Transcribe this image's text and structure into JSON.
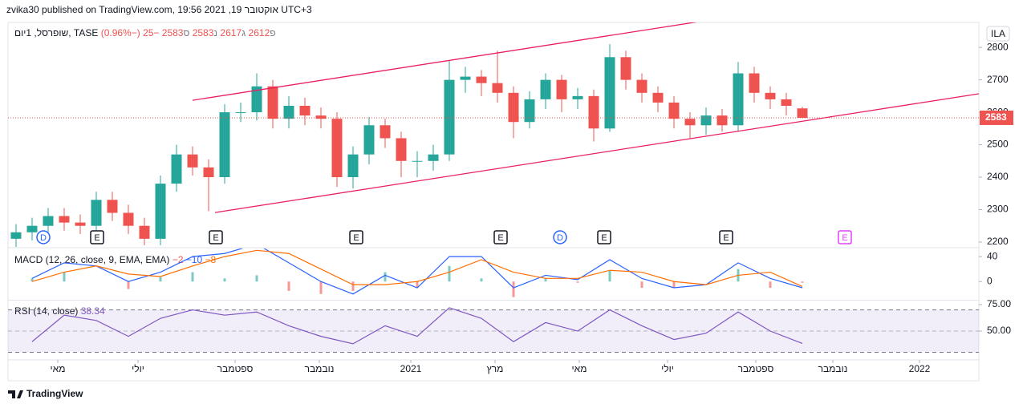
{
  "header": {
    "published": "zvika30 published on TradingView.com, אוקטובר 19, 2021 19:56 UTC+3",
    "symbol_badge": "ILA"
  },
  "footer": {
    "brand": "TradingView"
  },
  "chart_data": [
    {
      "type": "candlestick",
      "symbol": "שופרסל, 1יום, TASE",
      "ohlc_labels": [
        "פ",
        "ג",
        "נ",
        "ס"
      ],
      "change_label": "−25 (−0.96%)",
      "up_color": "#26a69a",
      "down_color": "#ef5350",
      "xlim": [
        0,
        121
      ],
      "ylim": [
        2185,
        2877
      ],
      "yticks": [
        2200,
        2300,
        2400,
        2500,
        2600,
        2700,
        2800
      ],
      "x": [
        1,
        3,
        5,
        7,
        9,
        11,
        13,
        15,
        17,
        19,
        21,
        23,
        25,
        27,
        29,
        31,
        33,
        35,
        37,
        39,
        41,
        43,
        45,
        47,
        49,
        51,
        53,
        55,
        57,
        59,
        61,
        63,
        65,
        67,
        69,
        71,
        73,
        75,
        77,
        79,
        81,
        83,
        85,
        87,
        89,
        91,
        93,
        95,
        97,
        99
      ],
      "open": [
        2210,
        2230,
        2250,
        2280,
        2260,
        2250,
        2330,
        2290,
        2250,
        2210,
        2380,
        2470,
        2430,
        2400,
        2600,
        2600,
        2680,
        2580,
        2620,
        2590,
        2580,
        2400,
        2470,
        2560,
        2520,
        2450,
        2450,
        2470,
        2700,
        2710,
        2690,
        2660,
        2570,
        2640,
        2700,
        2640,
        2650,
        2550,
        2770,
        2700,
        2660,
        2630,
        2580,
        2560,
        2590,
        2560,
        2720,
        2660,
        2640,
        2612
      ],
      "high": [
        2255,
        2275,
        2305,
        2305,
        2285,
        2355,
        2355,
        2315,
        2275,
        2405,
        2500,
        2495,
        2455,
        2625,
        2630,
        2720,
        2700,
        2650,
        2645,
        2615,
        2600,
        2495,
        2585,
        2580,
        2540,
        2480,
        2500,
        2760,
        2740,
        2730,
        2790,
        2680,
        2665,
        2720,
        2715,
        2675,
        2670,
        2810,
        2790,
        2720,
        2680,
        2650,
        2600,
        2615,
        2610,
        2755,
        2740,
        2680,
        2660,
        2617
      ],
      "low": [
        2185,
        2205,
        2225,
        2235,
        2225,
        2225,
        2265,
        2225,
        2190,
        2190,
        2355,
        2405,
        2295,
        2380,
        2570,
        2575,
        2550,
        2550,
        2560,
        2550,
        2370,
        2365,
        2440,
        2490,
        2400,
        2400,
        2420,
        2450,
        2660,
        2650,
        2630,
        2520,
        2550,
        2610,
        2600,
        2610,
        2510,
        2540,
        2670,
        2630,
        2600,
        2550,
        2520,
        2530,
        2540,
        2540,
        2630,
        2610,
        2590,
        2583
      ],
      "close": [
        2230,
        2250,
        2280,
        2260,
        2250,
        2330,
        2290,
        2250,
        2210,
        2380,
        2470,
        2430,
        2400,
        2600,
        2600,
        2680,
        2580,
        2620,
        2590,
        2580,
        2400,
        2470,
        2560,
        2520,
        2450,
        2450,
        2470,
        2700,
        2710,
        2690,
        2660,
        2570,
        2640,
        2700,
        2640,
        2650,
        2550,
        2770,
        2700,
        2660,
        2630,
        2580,
        2560,
        2590,
        2560,
        2720,
        2660,
        2640,
        2620,
        2583
      ],
      "trendlines": [
        {
          "x": [
            23,
            86
          ],
          "y": [
            2637,
            2879
          ],
          "color": "#e91e63"
        },
        {
          "x": [
            25.8,
            121
          ],
          "y": [
            2291,
            2657
          ],
          "color": "#e91e63"
        }
      ],
      "events": [
        {
          "x": 4.4,
          "label": "D",
          "shape": "circle",
          "color": "#2962ff"
        },
        {
          "x": 11.1,
          "label": "E",
          "shape": "box",
          "color": "#131722"
        },
        {
          "x": 25.9,
          "label": "E",
          "shape": "box",
          "color": "#131722"
        },
        {
          "x": 43.4,
          "label": "E",
          "shape": "box",
          "color": "#131722"
        },
        {
          "x": 61.4,
          "label": "E",
          "shape": "box",
          "color": "#131722"
        },
        {
          "x": 68.8,
          "label": "D",
          "shape": "circle",
          "color": "#2962ff"
        },
        {
          "x": 74.3,
          "label": "E",
          "shape": "box",
          "color": "#131722"
        },
        {
          "x": 89.5,
          "label": "E",
          "shape": "box",
          "color": "#131722"
        },
        {
          "x": 104.3,
          "label": "E",
          "shape": "box",
          "color": "#e040fb"
        }
      ],
      "last_price_color": "#ef5350"
    },
    {
      "type": "macd",
      "title": "MACD (12, 26, close, 9, EMA, EMA)",
      "xlim": [
        0,
        121
      ],
      "ylim": [
        -28,
        53
      ],
      "yticks": [
        0,
        40
      ],
      "x": [
        3,
        7,
        11,
        15,
        19,
        23,
        27,
        31,
        35,
        39,
        43,
        47,
        51,
        55,
        59,
        63,
        67,
        71,
        75,
        79,
        83,
        87,
        91,
        95,
        99
      ],
      "histogram": {
        "values": [
          5,
          15,
          0,
          -12,
          7,
          15,
          5,
          10,
          -15,
          -20,
          -15,
          15,
          -10,
          25,
          5,
          -25,
          5,
          -2,
          17,
          -10,
          -10,
          0,
          20,
          -10,
          -2
        ],
        "up_color": "#26a69a",
        "down_color": "#ef5350",
        "last_label": "−2"
      },
      "series": [
        {
          "color": "#2962ff",
          "values": [
            5,
            30,
            25,
            0,
            15,
            40,
            45,
            60,
            30,
            0,
            -20,
            10,
            -10,
            40,
            40,
            -10,
            10,
            3,
            35,
            5,
            -10,
            -5,
            30,
            5,
            -10
          ],
          "last_label": "−10"
        },
        {
          "color": "#ff6d00",
          "values": [
            0,
            15,
            25,
            12,
            8,
            25,
            40,
            50,
            45,
            20,
            -5,
            -5,
            0,
            15,
            35,
            15,
            5,
            5,
            18,
            15,
            0,
            -5,
            10,
            15,
            -8
          ],
          "last_label": "−8"
        }
      ]
    },
    {
      "type": "rsi",
      "title": "RSI (14, close)",
      "xlim": [
        0,
        121
      ],
      "ylim": [
        24.3,
        78
      ],
      "yticks": [
        {
          "value": 75,
          "label": "75.00"
        },
        {
          "value": 50,
          "label": "50.00"
        }
      ],
      "band": [
        30,
        70
      ],
      "midline": 50,
      "color": "#7e57c2",
      "x": [
        3,
        7,
        11,
        15,
        19,
        23,
        27,
        31,
        35,
        39,
        43,
        47,
        51,
        55,
        59,
        63,
        67,
        71,
        75,
        79,
        83,
        87,
        91,
        95,
        99
      ],
      "values": [
        40,
        65,
        60,
        45,
        62,
        70,
        65,
        68,
        55,
        45,
        38,
        55,
        45,
        72,
        62,
        40,
        58,
        50,
        70,
        55,
        42,
        48,
        68,
        50,
        38.34
      ],
      "xticks": [
        {
          "value": 6.2,
          "label": "מאי"
        },
        {
          "value": 16.2,
          "label": "יולי"
        },
        {
          "value": 28.3,
          "label": "ספטמבר"
        },
        {
          "value": 38.8,
          "label": "נובמבר"
        },
        {
          "value": 50.2,
          "label": "2021"
        },
        {
          "value": 60.7,
          "label": "מרץ"
        },
        {
          "value": 71.2,
          "label": "מאי"
        },
        {
          "value": 82.2,
          "label": "יולי"
        },
        {
          "value": 93.2,
          "label": "ספטמבר"
        },
        {
          "value": 102.8,
          "label": "נובמבר"
        },
        {
          "value": 113.6,
          "label": "2022"
        }
      ]
    }
  ]
}
